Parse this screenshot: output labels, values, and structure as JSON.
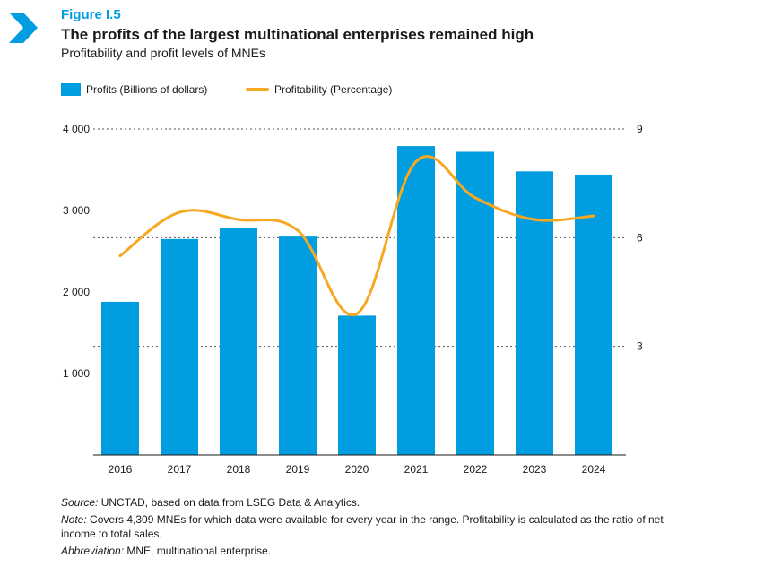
{
  "figure": {
    "label": "Figure I.5",
    "title": "The profits of the largest multinational enterprises remained high",
    "subtitle": "Profitability and profit levels of MNEs"
  },
  "legend": {
    "bar_label": "Profits (Billions of dollars)",
    "line_label": "Profitability (Percentage)"
  },
  "colors": {
    "bar": "#009ee0",
    "line": "#f7a823",
    "accent": "#009ee0"
  },
  "chart_data": {
    "type": "bar",
    "categories": [
      "2016",
      "2017",
      "2018",
      "2019",
      "2020",
      "2021",
      "2022",
      "2023",
      "2024"
    ],
    "series": [
      {
        "name": "Profits (Billions of dollars)",
        "type": "bar",
        "axis": "left",
        "values": [
          1880,
          2650,
          2780,
          2680,
          1710,
          3790,
          3720,
          3480,
          3440
        ]
      },
      {
        "name": "Profitability (Percentage)",
        "type": "line",
        "axis": "right",
        "values": [
          5.5,
          6.7,
          6.5,
          6.2,
          3.9,
          8.1,
          7.1,
          6.5,
          6.6
        ]
      }
    ],
    "ylim_left": [
      0,
      4000
    ],
    "yticks_left": [
      "4 000",
      "3 000",
      "2 000",
      "1 000"
    ],
    "ylim_right": [
      0,
      9
    ],
    "yticks_right": [
      "9",
      "6",
      "3"
    ],
    "grid": "dashed at right-axis ticks 3, 6, 9",
    "legend_position": "top-left"
  },
  "notes": {
    "source_label": "Source:",
    "source_text": " UNCTAD, based on data from LSEG Data & Analytics.",
    "note_label": "Note:",
    "note_text": " Covers 4,309 MNEs for which data were available for every year in the range. Profitability is calculated as the ratio of net income to total sales.",
    "abbrev_label": "Abbreviation:",
    "abbrev_text": " MNE, multinational enterprise."
  }
}
